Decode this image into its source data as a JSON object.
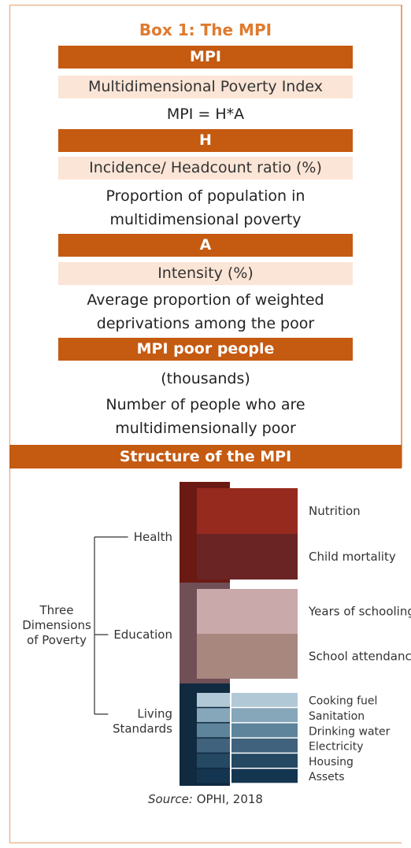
{
  "title": "Box 1: The MPI",
  "sections": [
    {
      "header": "MPI",
      "subtitle": "Multidimensional Poverty Index",
      "description": "MPI = H*A"
    },
    {
      "header": "H",
      "subtitle": "Incidence/ Headcount ratio (%)",
      "description": "Proportion of population in multidimensional poverty"
    },
    {
      "header": "A",
      "subtitle": "Intensity (%)",
      "description": "Average proportion of weighted deprivations among the poor"
    },
    {
      "header": "MPI poor people",
      "subtitle": "(thousands)",
      "description": "Number of people who are multidimensionally poor"
    }
  ],
  "structure_header": "Structure of the MPI",
  "diagram": {
    "root_lines": [
      "Three",
      "Dimensions",
      "of Poverty"
    ],
    "dimensions": [
      {
        "name_lines": [
          "Health"
        ],
        "color": "#6b1a13",
        "indicators": [
          {
            "name": "Nutrition",
            "color": "#962a1f"
          },
          {
            "name": "Child mortality",
            "color": "#6b2424"
          }
        ]
      },
      {
        "name_lines": [
          "Education"
        ],
        "color": "#714f57",
        "indicators": [
          {
            "name": "Years of schooling",
            "color": "#c9a9a9"
          },
          {
            "name": "School attendance",
            "color": "#a8877f"
          }
        ]
      },
      {
        "name_lines": [
          "Living",
          "Standards"
        ],
        "color": "#102a40",
        "indicators": [
          {
            "name": "Cooking fuel",
            "color": "#b1c8d6"
          },
          {
            "name": "Sanitation",
            "color": "#86a6ba"
          },
          {
            "name": "Drinking water",
            "color": "#5e849c"
          },
          {
            "name": "Electricity",
            "color": "#40627c"
          },
          {
            "name": "Housing",
            "color": "#254863"
          },
          {
            "name": "Assets",
            "color": "#143550"
          }
        ]
      }
    ]
  },
  "source": {
    "label": "Source:",
    "text": " OPHI, 2018"
  }
}
